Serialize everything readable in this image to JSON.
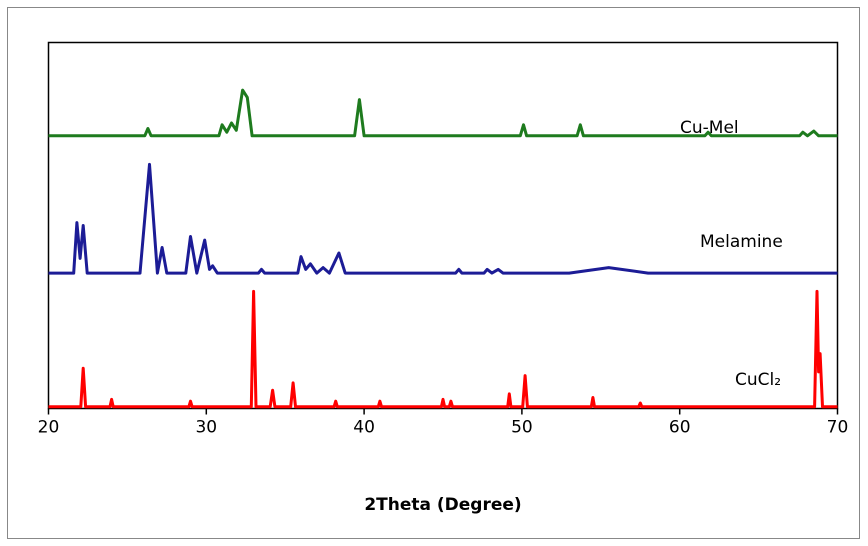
{
  "chart_data": {
    "type": "line",
    "xlabel": "2Theta (Degree)",
    "xlim": [
      20,
      70
    ],
    "xticks": [
      20,
      30,
      40,
      50,
      60,
      70
    ],
    "ylim": [
      0,
      100
    ],
    "series": [
      {
        "name": "Cu-Mel",
        "color": "#1e7b1e",
        "x": [
          20,
          26.1,
          26.3,
          26.5,
          30.8,
          31,
          31.3,
          31.6,
          31.9,
          32.3,
          32.6,
          32.9,
          39.4,
          39.7,
          40,
          49.9,
          50.1,
          50.3,
          53.5,
          53.7,
          53.9,
          61.6,
          61.8,
          62,
          67.6,
          67.8,
          68.1,
          68.5,
          68.8,
          70
        ],
        "values": [
          74.5,
          74.5,
          76.5,
          74.5,
          74.5,
          77.5,
          75.5,
          78,
          76,
          87,
          85,
          74.5,
          74.5,
          84.4,
          74.5,
          74.5,
          77.5,
          74.5,
          74.5,
          77.5,
          74.5,
          74.5,
          75.5,
          74.5,
          74.5,
          75.5,
          74.5,
          75.8,
          74.5,
          74.5
        ]
      },
      {
        "name": "Melamine",
        "color": "#1c1c96",
        "x": [
          20,
          21.6,
          21.8,
          22,
          22.2,
          22.45,
          25.8,
          26.4,
          26.9,
          27.2,
          27.5,
          28.7,
          29,
          29.4,
          29.9,
          30.2,
          30.4,
          30.7,
          33.3,
          33.5,
          33.7,
          35.8,
          36,
          36.3,
          36.6,
          37,
          37.4,
          37.8,
          38.4,
          38.8,
          45.8,
          46,
          46.2,
          47.6,
          47.8,
          48.1,
          48.5,
          48.8,
          53,
          55.5,
          58,
          70
        ],
        "values": [
          37,
          37,
          50.8,
          41,
          50,
          37,
          37,
          66.7,
          37,
          44,
          37,
          37,
          47,
          37,
          46,
          38,
          39,
          37,
          37,
          38,
          37,
          37,
          41.5,
          38,
          39.5,
          37,
          38.5,
          37,
          42.5,
          37,
          37,
          38,
          37,
          37,
          38,
          37,
          38,
          37,
          37,
          38.5,
          37,
          37
        ]
      },
      {
        "name": "CuCl₂",
        "color": "#ff0000",
        "x": [
          20,
          22.05,
          22.2,
          22.35,
          23.9,
          24,
          24.1,
          28.9,
          29,
          29.1,
          32.85,
          33,
          33.15,
          34.05,
          34.2,
          34.35,
          35.35,
          35.5,
          35.65,
          38.1,
          38.2,
          38.3,
          40.9,
          41,
          41.1,
          44.9,
          45,
          45.1,
          45.4,
          45.5,
          45.6,
          49.1,
          49.2,
          49.3,
          50.05,
          50.2,
          50.35,
          54.4,
          54.5,
          54.6,
          57.4,
          57.5,
          57.6,
          68.55,
          68.7,
          68.8,
          68.9,
          69.05,
          70
        ],
        "values": [
          0.5,
          0.5,
          11,
          0.5,
          0.5,
          2.5,
          0.5,
          0.5,
          2,
          0.5,
          0.5,
          32,
          0.5,
          0.5,
          5,
          0.5,
          0.5,
          7,
          0.5,
          0.5,
          2,
          0.5,
          0.5,
          2,
          0.5,
          0.5,
          2.5,
          0.5,
          0.5,
          2,
          0.5,
          0.5,
          4,
          0.5,
          0.5,
          9,
          0.5,
          0.5,
          3,
          0.5,
          0.5,
          1.5,
          0.5,
          0.5,
          32,
          10,
          15,
          0.5,
          0.5
        ]
      }
    ]
  }
}
